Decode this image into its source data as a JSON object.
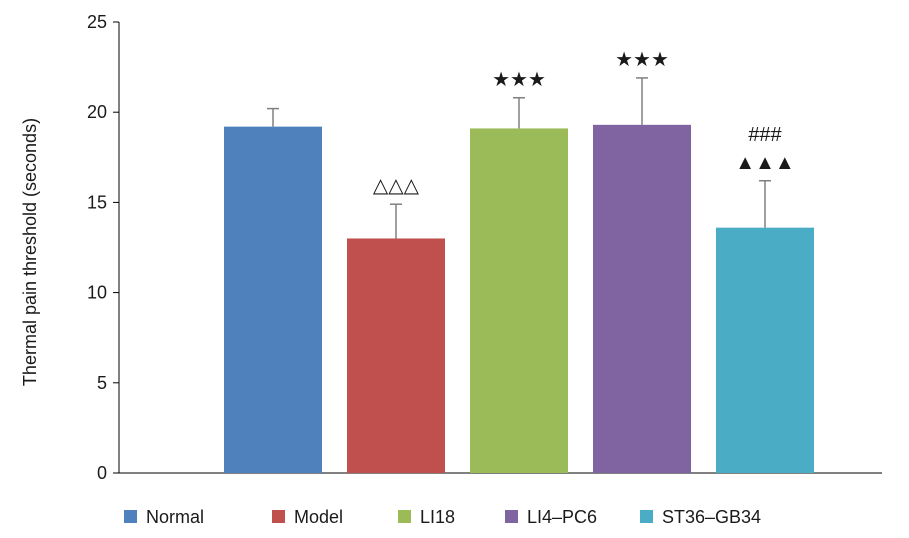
{
  "chart_data": {
    "type": "bar",
    "title": "",
    "xlabel": "",
    "ylabel": "Thermal pain threshold (seconds)",
    "ylim": [
      0,
      25
    ],
    "yticks": [
      0,
      5,
      10,
      15,
      20,
      25
    ],
    "grid": false,
    "legend_position": "bottom",
    "series": [
      {
        "name": "Normal",
        "value": 19.2,
        "error": 1.0,
        "color": "#4f81bd",
        "annotation": ""
      },
      {
        "name": "Model",
        "value": 13.0,
        "error": 1.9,
        "color": "#c0504d",
        "annotation": "△△△"
      },
      {
        "name": "LI18",
        "value": 19.1,
        "error": 1.7,
        "color": "#9bbb59",
        "annotation": "★★★"
      },
      {
        "name": "LI4–PC6",
        "value": 19.3,
        "error": 2.6,
        "color": "#8064a2",
        "annotation": "★★★"
      },
      {
        "name": "ST36–GB34",
        "value": 13.6,
        "error": 2.6,
        "color": "#4bacc6",
        "annotation": "###\n▲▲▲"
      }
    ]
  }
}
